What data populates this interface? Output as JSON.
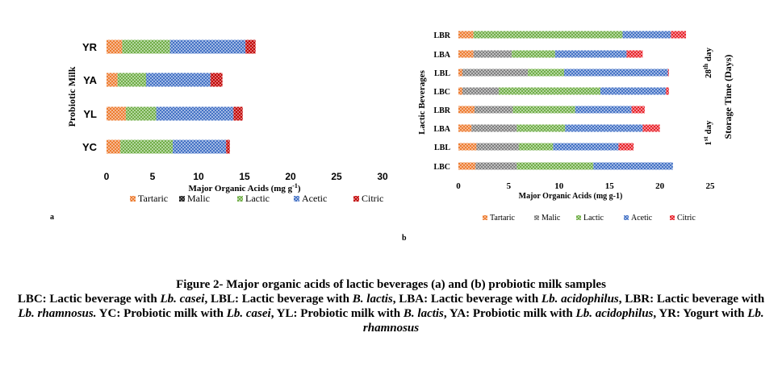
{
  "chart_data": [
    {
      "type": "bar",
      "stacked": true,
      "orientation": "horizontal",
      "panel_letter": "a",
      "ylabel": "Probiotic Milk",
      "xlabel": "Major Organic Acids (mg g",
      "xlabel_sup": "-1",
      "xlabel_end": ")",
      "xlim": [
        0,
        30
      ],
      "xticks": [
        0,
        5,
        10,
        15,
        20,
        25,
        30
      ],
      "categories": [
        "YR",
        "YA",
        "YL",
        "YC"
      ],
      "series": [
        {
          "name": "Tartaric",
          "values": [
            1.7,
            1.2,
            2.1,
            1.5
          ]
        },
        {
          "name": "Malic",
          "values": [
            0,
            0,
            0,
            0
          ]
        },
        {
          "name": "Lactic",
          "values": [
            5.2,
            3.1,
            3.3,
            5.7
          ]
        },
        {
          "name": "Acetic",
          "values": [
            8.2,
            7.0,
            8.4,
            5.8
          ]
        },
        {
          "name": "Citric",
          "values": [
            1.1,
            1.3,
            1.0,
            0.4
          ]
        }
      ],
      "legend_position": "bottom",
      "grid": false
    },
    {
      "type": "bar",
      "stacked": true,
      "orientation": "horizontal",
      "panel_letter": "b",
      "ylabel": "Lactic Beverages",
      "xlabel": "Major Organic Acids (mg g-1)",
      "xlim": [
        0,
        25
      ],
      "xticks": [
        0,
        5,
        10,
        15,
        20,
        25
      ],
      "categories": [
        "LBR",
        "LBA",
        "LBL",
        "LBC",
        "LBR",
        "LBA",
        "LBL",
        "LBC"
      ],
      "group_labels": [
        {
          "label": "28",
          "sup": "th",
          "suffix": " day"
        },
        {
          "label": "1",
          "sup": "st",
          "suffix": " day"
        }
      ],
      "y2label": "Storage Time (Days)",
      "series": [
        {
          "name": "Tartaric",
          "values": [
            1.5,
            1.5,
            0.4,
            0.4,
            1.6,
            1.3,
            1.8,
            1.7
          ]
        },
        {
          "name": "Malic",
          "values": [
            0,
            3.8,
            6.5,
            3.6,
            3.8,
            4.5,
            4.2,
            4.1
          ]
        },
        {
          "name": "Lactic",
          "values": [
            14.8,
            4.3,
            3.6,
            10.1,
            6.2,
            4.8,
            3.4,
            7.6
          ]
        },
        {
          "name": "Acetic",
          "values": [
            4.8,
            7.1,
            10.3,
            6.5,
            5.6,
            7.7,
            6.5,
            7.9
          ]
        },
        {
          "name": "Citric",
          "values": [
            1.5,
            1.6,
            0.1,
            0.3,
            1.3,
            1.7,
            1.5,
            0
          ]
        }
      ],
      "legend_position": "bottom",
      "grid": false
    }
  ],
  "colors": {
    "Tartaric": "#ED7D31",
    "Malic": "#7F7F7F",
    "Lactic": "#70AD47",
    "Acetic": "#4472C4",
    "Citric": "#E8212A",
    "Malic_a": "#1F1F1F",
    "Citric_a": "#C00000"
  },
  "caption": {
    "title": "Figure 2- Major organic acids of lactic beverages (a) and (b) probiotic milk samples",
    "line2_parts": [
      {
        "t": "LBC: Lactic beverage with ",
        "i": false
      },
      {
        "t": "Lb. casei",
        "i": true
      },
      {
        "t": ", LBL: Lactic beverage with ",
        "i": false
      },
      {
        "t": "B. lactis",
        "i": true
      },
      {
        "t": ", LBA: Lactic beverage with ",
        "i": false
      },
      {
        "t": "Lb. acidophilus",
        "i": true
      },
      {
        "t": ", LBR: Lactic beverage with ",
        "i": false
      },
      {
        "t": "Lb. rhamnosus.",
        "i": true
      },
      {
        "t": " YC: Probiotic milk with ",
        "i": false
      },
      {
        "t": "Lb. casei",
        "i": true
      },
      {
        "t": ", YL: Probiotic milk with ",
        "i": false
      },
      {
        "t": "B. lactis",
        "i": true
      },
      {
        "t": ", YA: Probiotic milk with ",
        "i": false
      },
      {
        "t": "Lb. acidophilus",
        "i": true
      },
      {
        "t": ", YR: Yogurt with ",
        "i": false
      },
      {
        "t": "Lb. rhamnosus",
        "i": true
      }
    ]
  }
}
